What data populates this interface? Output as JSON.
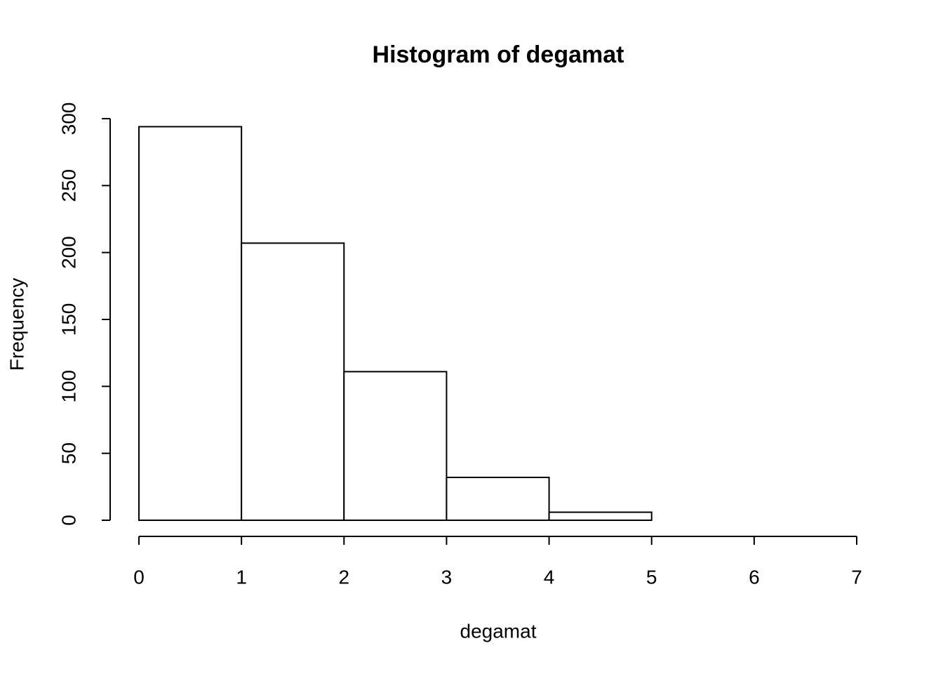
{
  "chart_data": {
    "type": "histogram",
    "title": "Histogram of degamat",
    "x_label": "degamat",
    "y_label": "Frequency",
    "bins": [
      0,
      1,
      2,
      3,
      4,
      5
    ],
    "values": [
      294,
      207,
      111,
      32,
      6
    ],
    "color": "#ffffff",
    "xlim": [
      0,
      7
    ],
    "xticks": [
      0,
      1,
      2,
      3,
      4,
      5,
      6,
      7
    ],
    "ylim": [
      0,
      300
    ],
    "yticks": [
      0,
      50,
      100,
      150,
      200,
      250,
      300
    ]
  }
}
